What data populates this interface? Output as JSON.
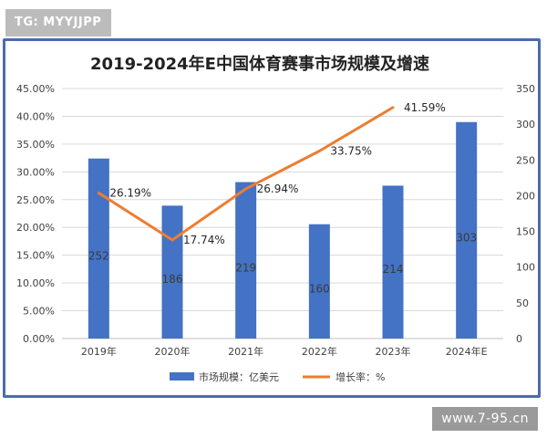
{
  "header": {
    "tag": "TG: MYYJJPP"
  },
  "footer": {
    "url": "www.7-95.cn"
  },
  "chart_data": {
    "type": "bar",
    "title": "2019-2024年E中国体育赛事市场规模及增速",
    "categories": [
      "2019年",
      "2020年",
      "2021年",
      "2022年",
      "2023年",
      "2024年E"
    ],
    "series": [
      {
        "name": "市场规模：亿美元",
        "type": "bar",
        "axis": "right",
        "color": "#4472c4",
        "values": [
          252,
          186,
          219,
          160,
          214,
          303
        ],
        "labels": [
          "252",
          "186",
          "219",
          "160",
          "214",
          "303"
        ]
      },
      {
        "name": "增长率：%",
        "type": "line",
        "axis": "left",
        "color": "#ed7d31",
        "values": [
          26.19,
          17.74,
          26.94,
          33.75,
          41.59,
          null
        ],
        "labels": [
          "26.19%",
          "17.74%",
          "26.94%",
          "33.75%",
          "41.59%",
          ""
        ]
      }
    ],
    "y_left": {
      "min": 0,
      "max": 45,
      "ticks": [
        "0.00%",
        "5.00%",
        "10.00%",
        "15.00%",
        "20.00%",
        "25.00%",
        "30.00%",
        "35.00%",
        "40.00%",
        "45.00%"
      ]
    },
    "y_right": {
      "min": 0,
      "max": 350,
      "ticks": [
        "0",
        "50",
        "100",
        "150",
        "200",
        "250",
        "300",
        "350"
      ]
    },
    "grid": true,
    "legend_position": "bottom"
  }
}
